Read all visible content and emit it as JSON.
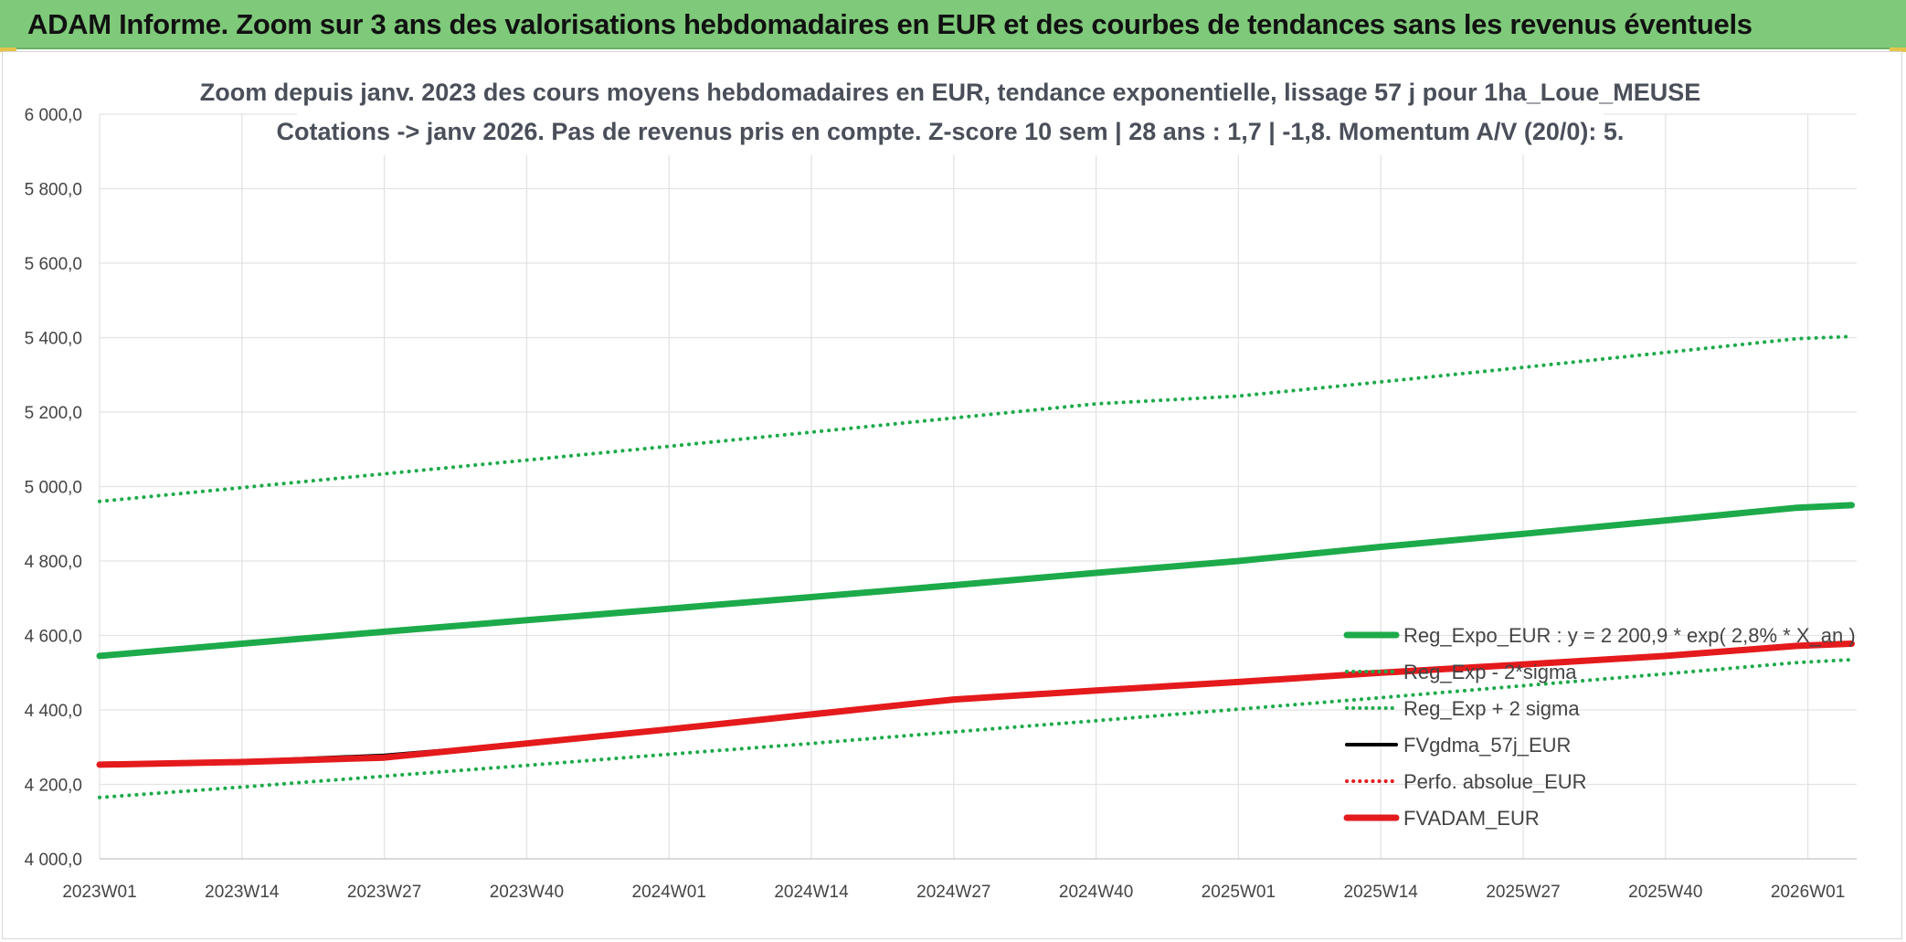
{
  "banner": {
    "title": "ADAM Informe. Zoom sur 3 ans des valorisations hebdomadaires en EUR et des courbes de tendances sans les revenus éventuels"
  },
  "chart_data": {
    "type": "line",
    "title_line1": "Zoom depuis janv. 2023 des cours moyens hebdomadaires en EUR, tendance exponentielle, lissage 57 j pour 1ha_Loue_MEUSE",
    "title_line2": "Cotations -> janv 2026. Pas de revenus pris en compte. Z-score 10 sem | 28 ans : 1,7 | -1,8. Momentum A/V (20/0): 5.",
    "y_ticks": [
      "4 000,0",
      "4 200,0",
      "4 400,0",
      "4 600,0",
      "4 800,0",
      "5 000,0",
      "5 200,0",
      "5 400,0",
      "5 600,0",
      "5 800,0",
      "6 000,0"
    ],
    "ylim": [
      4000,
      6000
    ],
    "x_ticks": [
      "2023W01",
      "2023W14",
      "2023W27",
      "2023W40",
      "2024W01",
      "2024W14",
      "2024W27",
      "2024W40",
      "2025W01",
      "2025W14",
      "2025W27",
      "2025W40",
      "2026W01"
    ],
    "x_range_weeks": [
      0,
      161
    ],
    "grid": true,
    "legend_position": "right-bottom",
    "series": [
      {
        "name": "Reg_Expo_EUR : y = 2 200,9 * exp( 2,8% *  X_an )",
        "style": "solid",
        "color": "#1daa4a",
        "points": [
          [
            0,
            4545
          ],
          [
            13,
            4578
          ],
          [
            26,
            4610
          ],
          [
            39,
            4641
          ],
          [
            52,
            4672
          ],
          [
            65,
            4703
          ],
          [
            78,
            4735
          ],
          [
            91,
            4768
          ],
          [
            104,
            4800
          ],
          [
            117,
            4838
          ],
          [
            130,
            4873
          ],
          [
            143,
            4909
          ],
          [
            155,
            4943
          ],
          [
            160,
            4950
          ]
        ]
      },
      {
        "name": "Reg_Exp - 2*sigma",
        "style": "dotted",
        "color": "#1daa4a",
        "points": [
          [
            0,
            4165
          ],
          [
            13,
            4193
          ],
          [
            26,
            4222
          ],
          [
            39,
            4251
          ],
          [
            52,
            4281
          ],
          [
            65,
            4310
          ],
          [
            78,
            4341
          ],
          [
            91,
            4371
          ],
          [
            104,
            4402
          ],
          [
            117,
            4433
          ],
          [
            130,
            4465
          ],
          [
            143,
            4497
          ],
          [
            155,
            4527
          ],
          [
            160,
            4535
          ]
        ]
      },
      {
        "name": "Reg_Exp + 2 sigma",
        "style": "dotted",
        "color": "#1daa4a",
        "points": [
          [
            0,
            4960
          ],
          [
            13,
            4997
          ],
          [
            26,
            5034
          ],
          [
            39,
            5071
          ],
          [
            52,
            5108
          ],
          [
            65,
            5146
          ],
          [
            78,
            5184
          ],
          [
            91,
            5222
          ],
          [
            104,
            5243
          ],
          [
            117,
            5281
          ],
          [
            130,
            5320
          ],
          [
            143,
            5360
          ],
          [
            155,
            5397
          ],
          [
            160,
            5403
          ]
        ]
      },
      {
        "name": "FVgdma_57j_EUR",
        "style": "solid",
        "color": "#000000",
        "points": [
          [
            0,
            4255
          ],
          [
            13,
            4262
          ],
          [
            26,
            4278
          ],
          [
            39,
            4310
          ],
          [
            52,
            4348
          ],
          [
            65,
            4388
          ],
          [
            78,
            4428
          ],
          [
            91,
            4452
          ],
          [
            104,
            4475
          ],
          [
            117,
            4500
          ],
          [
            130,
            4522
          ],
          [
            143,
            4545
          ],
          [
            155,
            4570
          ],
          [
            160,
            4575
          ]
        ]
      },
      {
        "name": "Perfo. absolue_EUR",
        "style": "dotted",
        "color": "#e41a1c",
        "points": []
      },
      {
        "name": "FVADAM_EUR",
        "style": "solid",
        "color": "#e41a1c",
        "points": [
          [
            0,
            4253
          ],
          [
            13,
            4260
          ],
          [
            26,
            4272
          ],
          [
            39,
            4310
          ],
          [
            52,
            4348
          ],
          [
            65,
            4388
          ],
          [
            78,
            4428
          ],
          [
            91,
            4452
          ],
          [
            104,
            4475
          ],
          [
            117,
            4500
          ],
          [
            130,
            4522
          ],
          [
            143,
            4545
          ],
          [
            155,
            4572
          ],
          [
            160,
            4578
          ]
        ]
      }
    ]
  }
}
